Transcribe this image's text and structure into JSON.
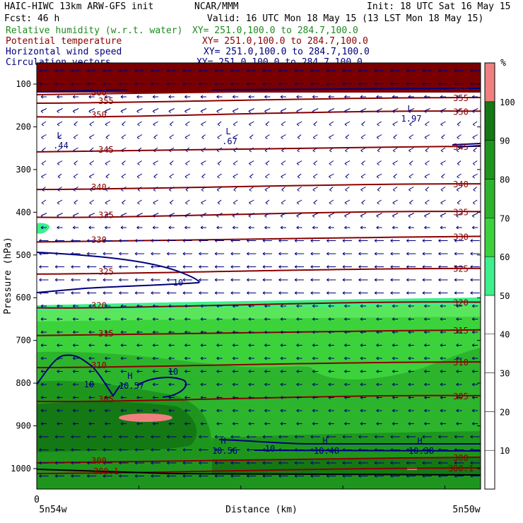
{
  "header": {
    "title_left": "HAIC-HIWC 13km ARW-GFS init",
    "org": "NCAR/MMM",
    "init": "Init: 18 UTC Sat 16 May 15",
    "fcst": "Fcst:   46 h",
    "valid": "Valid: 16 UTC Mon 18 May 15 (13 LST Mon 18 May 15)"
  },
  "fields": [
    {
      "name": "Relative humidity (w.r.t. water)",
      "xy": "XY= 251.0,100.0 to 284.7,100.0",
      "color": "#1e8c1e"
    },
    {
      "name": "Potential temperature",
      "xy": "XY= 251.0,100.0 to 284.7,100.0",
      "color": "#8b0000"
    },
    {
      "name": "Horizontal wind speed",
      "xy": "XY= 251.0,100.0 to 284.7,100.0",
      "color": "#00007a"
    },
    {
      "name": "Circulation vectors",
      "xy": "XY= 251.0,100.0 to 284.7,100.0",
      "color": "#00007a"
    }
  ],
  "colors": {
    "rh_fills": [
      "#ffffff",
      "#3cf08c",
      "#5ae65a",
      "#3cd23c",
      "#2db42d",
      "#1e961e",
      "#147814",
      "#f08080"
    ],
    "theta": "#8b0000",
    "wind": "#00007a"
  },
  "chart_data": {
    "type": "heatmap",
    "ylabel": "Pressure (hPa)",
    "xlabel": "Distance (km)",
    "y_ticks": [
      "100",
      "200",
      "300",
      "400",
      "500",
      "600",
      "700",
      "800",
      "900",
      "1000"
    ],
    "x_tick_zero": "0",
    "x_left": "5n54w",
    "x_right": "5n50w",
    "ylim": [
      1050,
      50
    ],
    "colorbar": {
      "unit": "%",
      "levels": [
        0,
        10,
        20,
        30,
        40,
        50,
        60,
        70,
        80,
        90,
        100,
        110
      ],
      "labels": [
        "10",
        "20",
        "30",
        "40",
        "50",
        "60",
        "70",
        "80",
        "90",
        "100"
      ]
    },
    "isentropes": [
      {
        "label": "360",
        "p": 118
      },
      {
        "label": "355",
        "p": 138
      },
      {
        "label": "350",
        "p": 170
      },
      {
        "label": "345",
        "p": 252
      },
      {
        "label": "340",
        "p": 340
      },
      {
        "label": "335",
        "p": 405
      },
      {
        "label": "330",
        "p": 463
      },
      {
        "label": "325",
        "p": 538
      },
      {
        "label": "320",
        "p": 617
      },
      {
        "label": "315",
        "p": 682
      },
      {
        "label": "310",
        "p": 757
      },
      {
        "label": "305",
        "p": 836
      },
      {
        "label": "300",
        "p": 980
      },
      {
        "label": "300.1",
        "p": 1005
      }
    ],
    "wind_labels": [
      {
        "text": "10",
        "pos": "mid-level jet"
      },
      {
        "text": "10",
        "pos": "low-level left"
      },
      {
        "text": "10",
        "pos": "low-level center"
      },
      {
        "text": "10",
        "pos": "near-surface"
      }
    ],
    "extrema": [
      {
        "letter": "L",
        "value": ".44"
      },
      {
        "letter": "L",
        "value": ".67"
      },
      {
        "letter": "L",
        "value": "1.97"
      },
      {
        "letter": "H",
        "value": "10.57"
      },
      {
        "letter": "H",
        "value": "10.56"
      },
      {
        "letter": "H",
        "value": "10.48"
      },
      {
        "letter": "H",
        "value": "10.38"
      }
    ]
  }
}
